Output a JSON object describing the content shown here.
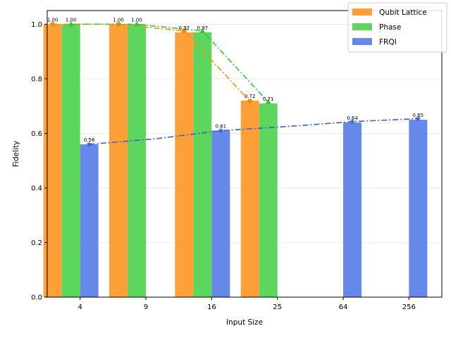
{
  "chart_data": {
    "type": "bar",
    "title": "",
    "xlabel": "Input Size",
    "ylabel": "Fidelity",
    "categories": [
      "4",
      "9",
      "16",
      "25",
      "64",
      "256"
    ],
    "ylim": [
      0,
      1.05
    ],
    "yticks": [
      "0.0",
      "0.2",
      "0.4",
      "0.6",
      "0.8",
      "1.0"
    ],
    "grid": "horizontal",
    "legend_position": "top-right",
    "series": [
      {
        "name": "Qubit Lattice",
        "color": "#ff9f38",
        "line_color": "#ff8c00",
        "marker": "circle",
        "values": [
          1.0,
          1.0,
          0.97,
          0.72,
          null,
          null
        ],
        "labels": [
          "1.00",
          "1.00",
          "0.97",
          "0.72",
          "",
          ""
        ]
      },
      {
        "name": "Phase",
        "color": "#5cd65c",
        "line_color": "#32c832",
        "marker": "triangle",
        "values": [
          1.0,
          1.0,
          0.97,
          0.71,
          null,
          null
        ],
        "labels": [
          "1.00",
          "1.00",
          "0.97",
          "0.71",
          "",
          ""
        ]
      },
      {
        "name": "FRQI",
        "color": "#6688e8",
        "line_color": "#3a5fd9",
        "marker": "star",
        "values": [
          0.56,
          null,
          0.61,
          null,
          0.64,
          0.65
        ],
        "labels": [
          "0.56",
          "",
          "0.61",
          "",
          "0.64",
          "0.65"
        ]
      }
    ],
    "trend_lines": [
      {
        "series": "Qubit Lattice",
        "style": "dash-dot",
        "points": [
          [
            0,
            1.0
          ],
          [
            1,
            1.0
          ],
          [
            2,
            0.975
          ],
          [
            3,
            0.718
          ]
        ]
      },
      {
        "series": "Phase",
        "style": "dash-dot",
        "points": [
          [
            0,
            1.0
          ],
          [
            1,
            1.0
          ],
          [
            2,
            0.975
          ],
          [
            3,
            0.715
          ]
        ]
      },
      {
        "series": "FRQI",
        "style": "dash-dot",
        "points": [
          [
            0,
            0.56
          ],
          [
            1,
            0.58
          ],
          [
            2,
            0.61
          ],
          [
            3,
            0.625
          ],
          [
            4,
            0.643
          ],
          [
            5,
            0.654
          ]
        ]
      }
    ]
  }
}
